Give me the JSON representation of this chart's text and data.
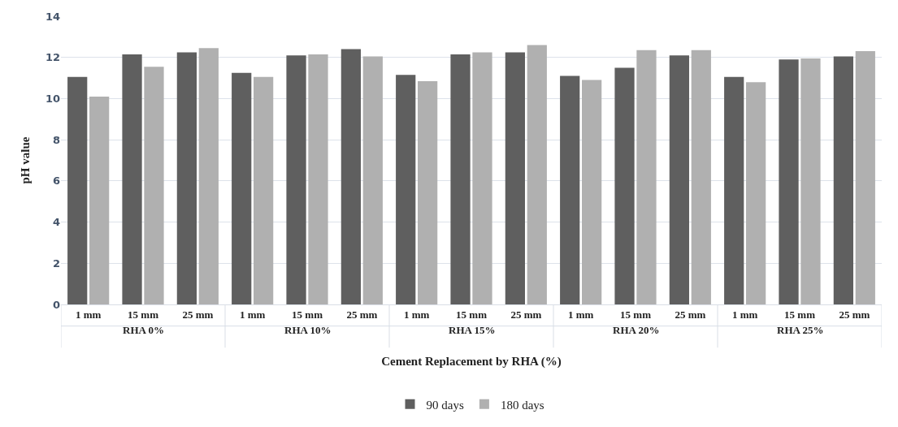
{
  "chart_data": {
    "type": "bar",
    "xlabel": "Cement Replacement by RHA (%)",
    "ylabel": "pH value",
    "categories": [
      "1 mm",
      "15 mm",
      "25 mm",
      "1 mm",
      "15 mm",
      "25 mm",
      "1 mm",
      "15 mm",
      "25 mm",
      "1 mm",
      "15 mm",
      "25 mm",
      "1 mm",
      "15 mm",
      "25 mm"
    ],
    "annotations": [
      "RHA 0%",
      "RHA 10%",
      "RHA 15%",
      "RHA 20%",
      "RHA 25%"
    ],
    "series": [
      {
        "name": "90 days",
        "color": "#5f5f5f",
        "values": [
          11.05,
          12.15,
          12.25,
          11.25,
          12.1,
          12.4,
          11.15,
          12.15,
          12.25,
          11.1,
          11.5,
          12.1,
          11.05,
          11.9,
          12.05
        ]
      },
      {
        "name": "180 days",
        "color": "#b0b0b0",
        "values": [
          10.1,
          11.55,
          12.45,
          11.05,
          12.15,
          12.05,
          10.85,
          12.25,
          12.6,
          10.9,
          12.35,
          12.35,
          10.8,
          11.95,
          12.3
        ]
      }
    ],
    "ylim": [
      0,
      14
    ],
    "yticks": [
      0,
      2,
      4,
      6,
      8,
      10,
      12,
      14
    ],
    "grid": "y",
    "legend": "bottom"
  }
}
